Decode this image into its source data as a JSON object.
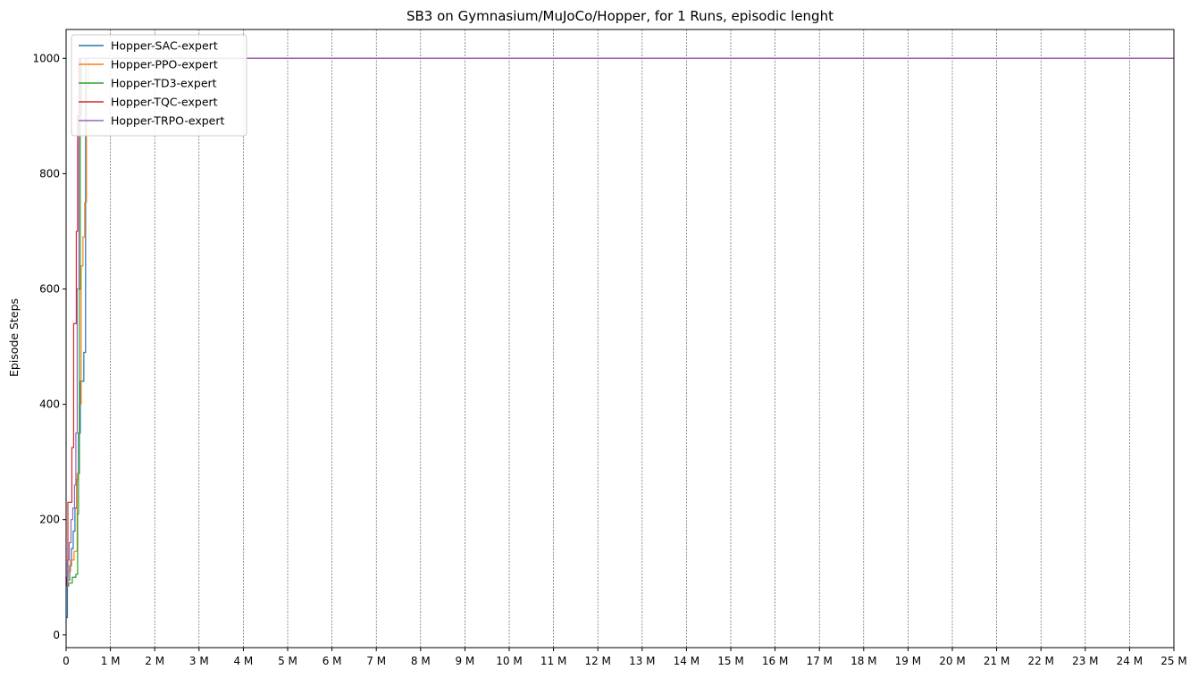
{
  "chart_data": {
    "type": "line",
    "title": "SB3 on Gymnasium/MuJoCo/Hopper, for 1 Runs, episodic lenght",
    "xlabel": "",
    "ylabel": "Episode Steps",
    "xlim": [
      0,
      25000000
    ],
    "ylim": [
      -22,
      1050
    ],
    "x_ticks": [
      0,
      1000000,
      2000000,
      3000000,
      4000000,
      5000000,
      6000000,
      7000000,
      8000000,
      9000000,
      10000000,
      11000000,
      12000000,
      13000000,
      14000000,
      15000000,
      16000000,
      17000000,
      18000000,
      19000000,
      20000000,
      21000000,
      22000000,
      23000000,
      24000000,
      25000000
    ],
    "x_tick_labels": [
      "0",
      "1 M",
      "2 M",
      "3 M",
      "4 M",
      "5 M",
      "6 M",
      "7 M",
      "8 M",
      "9 M",
      "10 M",
      "11 M",
      "12 M",
      "13 M",
      "14 M",
      "15 M",
      "16 M",
      "17 M",
      "18 M",
      "19 M",
      "20 M",
      "21 M",
      "22 M",
      "23 M",
      "24 M",
      "25 M"
    ],
    "y_ticks": [
      0,
      200,
      400,
      600,
      800,
      1000
    ],
    "y_tick_labels": [
      "0",
      "200",
      "400",
      "600",
      "800",
      "1000"
    ],
    "grid": "x-dashed",
    "legend_position": "top-left",
    "series": [
      {
        "name": "Hopper-SAC-expert",
        "color": "#1f77b4",
        "step": true,
        "x": [
          0,
          30000,
          80000,
          120000,
          160000,
          200000,
          240000,
          280000,
          320000,
          360000,
          400000,
          440000,
          480000,
          25000000
        ],
        "y": [
          30,
          95,
          120,
          150,
          180,
          220,
          270,
          350,
          440,
          440,
          490,
          1000,
          1000,
          1000
        ]
      },
      {
        "name": "Hopper-PPO-expert",
        "color": "#ff7f0e",
        "step": true,
        "x": [
          0,
          40000,
          100000,
          180000,
          250000,
          300000,
          340000,
          380000,
          420000,
          460000,
          500000,
          25000000
        ],
        "y": [
          85,
          110,
          130,
          145,
          280,
          400,
          640,
          690,
          750,
          950,
          1000,
          1000
        ]
      },
      {
        "name": "Hopper-TD3-expert",
        "color": "#2ca02c",
        "step": true,
        "x": [
          0,
          60000,
          140000,
          220000,
          260000,
          280000,
          300000,
          320000,
          340000,
          25000000
        ],
        "y": [
          85,
          90,
          100,
          105,
          210,
          280,
          600,
          900,
          1000,
          1000
        ]
      },
      {
        "name": "Hopper-TQC-expert",
        "color": "#d62728",
        "step": true,
        "x": [
          0,
          20000,
          40000,
          100000,
          130000,
          170000,
          200000,
          230000,
          260000,
          290000,
          320000,
          350000,
          25000000
        ],
        "y": [
          85,
          100,
          230,
          230,
          325,
          540,
          540,
          700,
          900,
          1000,
          1000,
          1000,
          1000
        ]
      },
      {
        "name": "Hopper-TRPO-expert",
        "color": "#9467bd",
        "step": true,
        "x": [
          0,
          30000,
          70000,
          110000,
          150000,
          190000,
          220000,
          250000,
          290000,
          320000,
          360000,
          25000000
        ],
        "y": [
          85,
          130,
          160,
          200,
          220,
          260,
          350,
          600,
          900,
          1000,
          1000,
          1000
        ]
      }
    ]
  }
}
